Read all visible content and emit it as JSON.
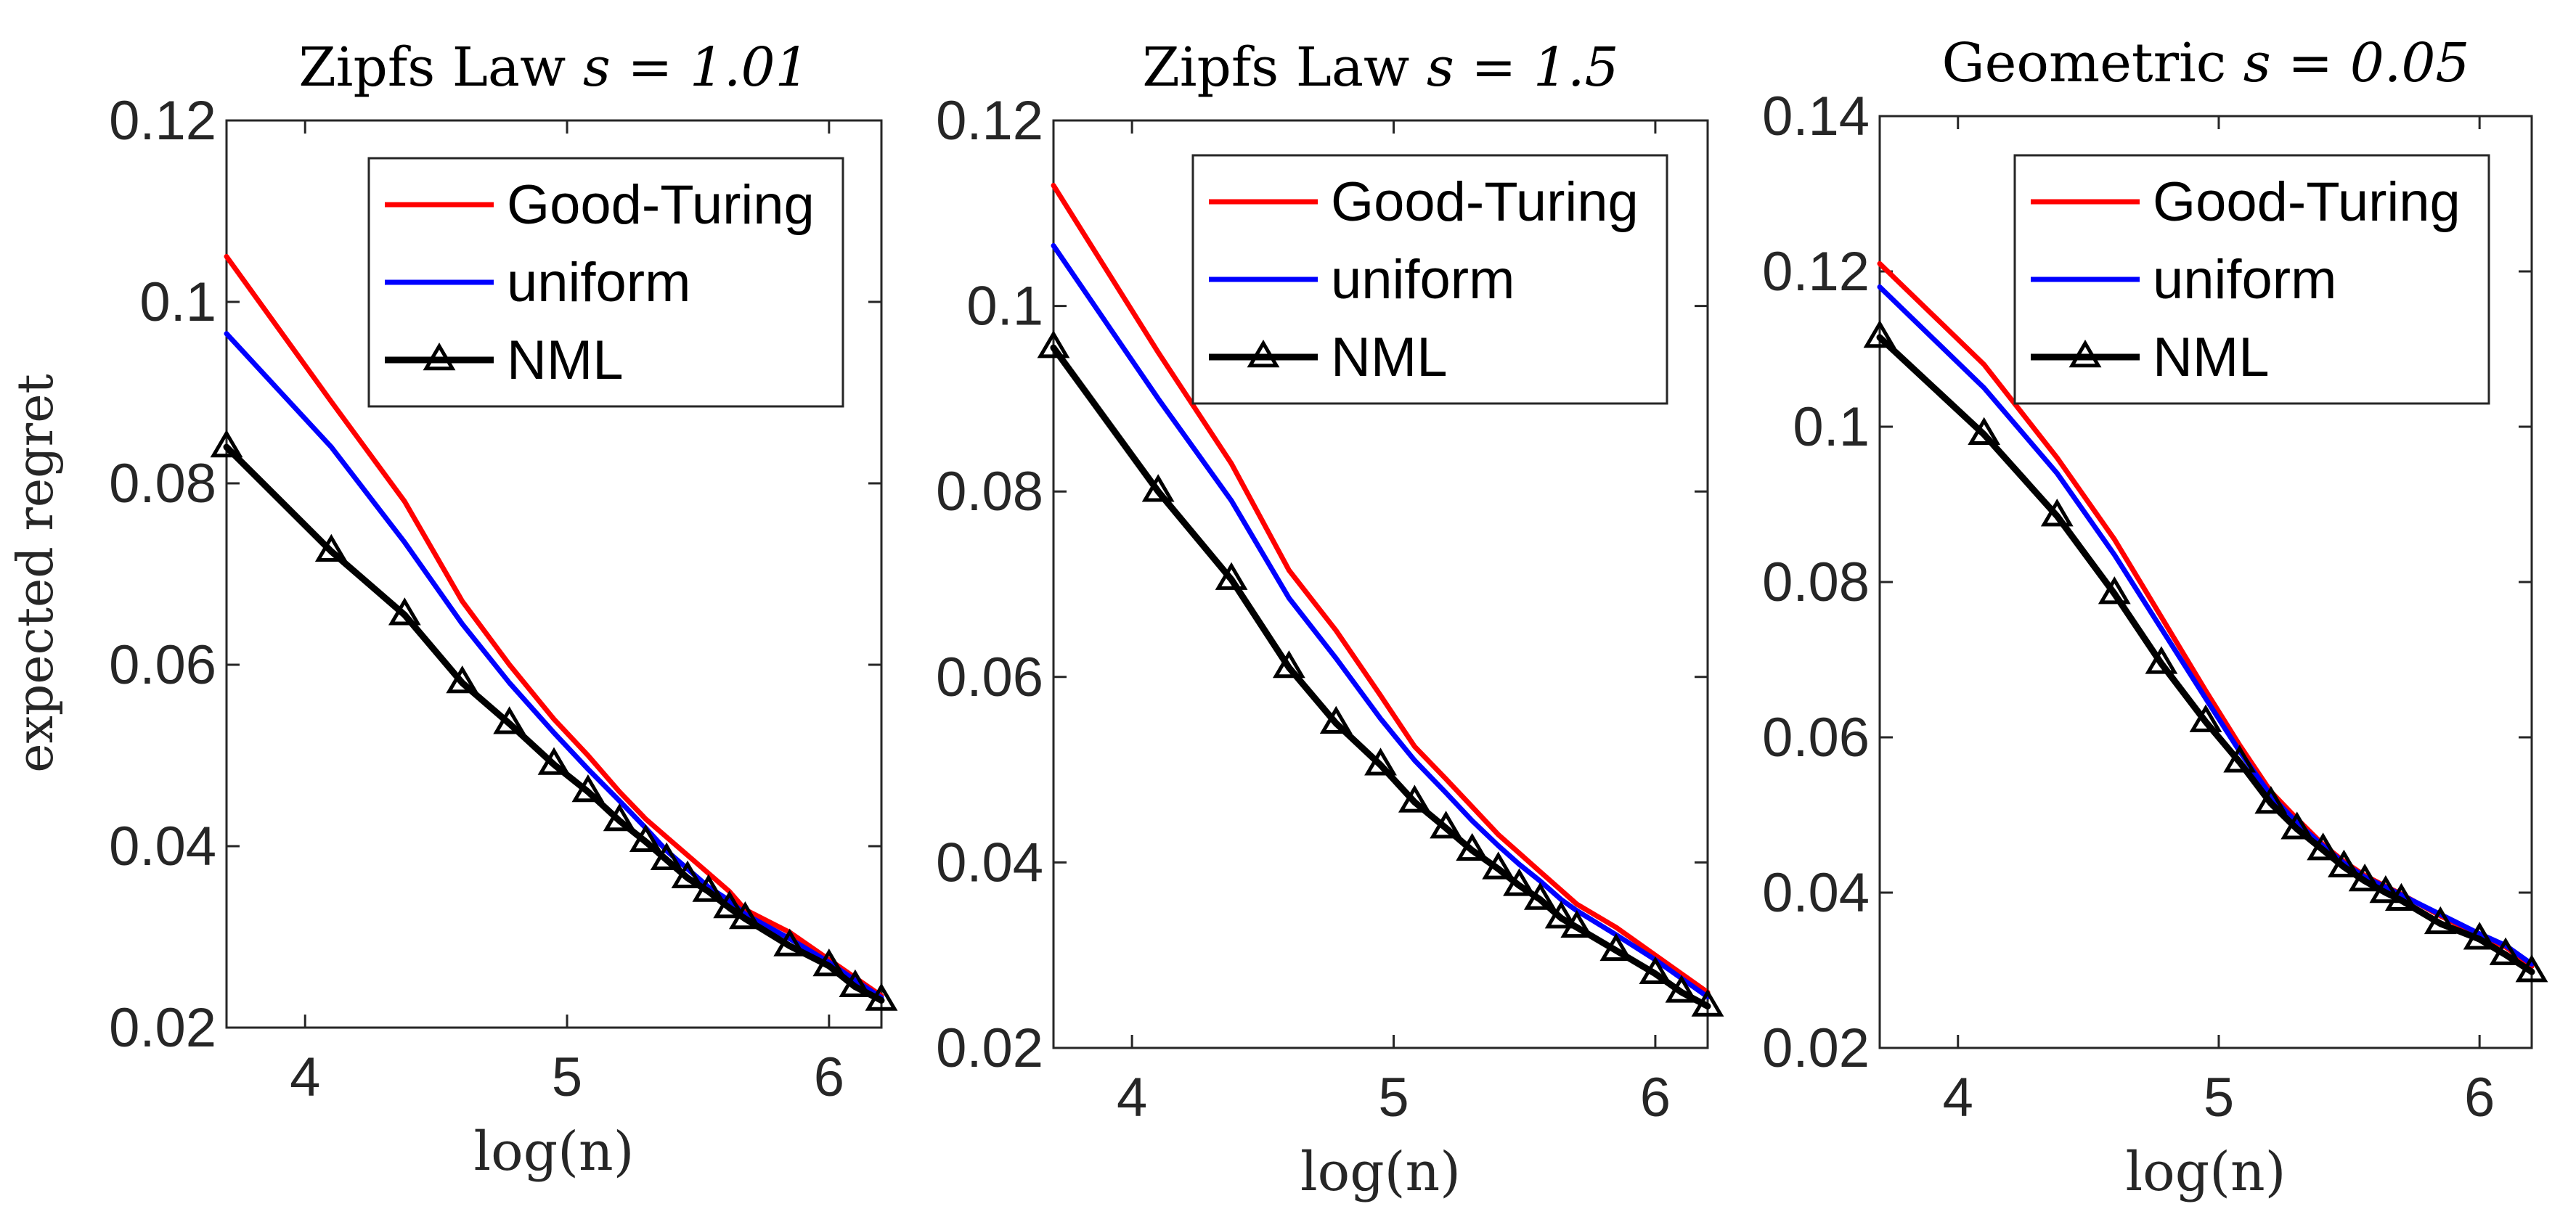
{
  "figure": {
    "ylabel": "expected regret",
    "colors": {
      "good_turing": "#ff0000",
      "uniform": "#0000ff",
      "nml": "#000000",
      "axes": "#262626"
    },
    "legend": {
      "good_turing": "Good-Turing",
      "uniform": "uniform",
      "nml": "NML"
    }
  },
  "chart_data": [
    {
      "type": "line",
      "title_text": "Zipfs Law",
      "title_math": "s = 1.01",
      "xlabel": "log(n)",
      "ylabel": "expected regret",
      "xlim": [
        3.7,
        6.2
      ],
      "ylim": [
        0.02,
        0.12
      ],
      "xticks": [
        4,
        5,
        6
      ],
      "xtick_labels": [
        "4",
        "5",
        "6"
      ],
      "yticks": [
        0.02,
        0.04,
        0.06,
        0.08,
        0.1,
        0.12
      ],
      "ytick_labels": [
        "0.02",
        "0.04",
        "0.06",
        "0.08",
        "0.1",
        "0.12"
      ],
      "legend_position": "top-right",
      "x": [
        3.7,
        4.1,
        4.38,
        4.6,
        4.78,
        4.95,
        5.08,
        5.2,
        5.3,
        5.38,
        5.46,
        5.54,
        5.62,
        5.68,
        5.85,
        6.0,
        6.1,
        6.2
      ],
      "series": [
        {
          "name": "Good-Turing",
          "key": "good_turing",
          "values": [
            0.105,
            0.089,
            0.078,
            0.067,
            0.06,
            0.054,
            0.05,
            0.046,
            0.043,
            0.041,
            0.039,
            0.037,
            0.035,
            0.033,
            0.0305,
            0.0275,
            0.0255,
            0.0235
          ]
        },
        {
          "name": "uniform",
          "key": "uniform",
          "values": [
            0.0965,
            0.084,
            0.0735,
            0.0645,
            0.058,
            0.0525,
            0.0485,
            0.045,
            0.042,
            0.0395,
            0.0375,
            0.0355,
            0.034,
            0.0325,
            0.0298,
            0.0272,
            0.0252,
            0.0233
          ]
        },
        {
          "name": "NML",
          "key": "nml",
          "marker": "triangle",
          "values": [
            0.084,
            0.0725,
            0.0655,
            0.058,
            0.0535,
            0.049,
            0.046,
            0.0428,
            0.0405,
            0.0385,
            0.0365,
            0.035,
            0.0332,
            0.032,
            0.029,
            0.0268,
            0.0245,
            0.023
          ]
        }
      ]
    },
    {
      "type": "line",
      "title_text": "Zipfs Law",
      "title_math": "s = 1.5",
      "xlabel": "log(n)",
      "ylabel": "",
      "xlim": [
        3.7,
        6.2
      ],
      "ylim": [
        0.02,
        0.12
      ],
      "xticks": [
        4,
        5,
        6
      ],
      "xtick_labels": [
        "4",
        "5",
        "6"
      ],
      "yticks": [
        0.02,
        0.04,
        0.06,
        0.08,
        0.1,
        0.12
      ],
      "ytick_labels": [
        "0.02",
        "0.04",
        "0.06",
        "0.08",
        "0.1",
        "0.12"
      ],
      "legend_position": "top-right",
      "x": [
        3.7,
        4.1,
        4.38,
        4.6,
        4.78,
        4.95,
        5.08,
        5.2,
        5.3,
        5.4,
        5.48,
        5.56,
        5.64,
        5.7,
        5.85,
        6.0,
        6.1,
        6.2
      ],
      "series": [
        {
          "name": "Good-Turing",
          "key": "good_turing",
          "values": [
            0.113,
            0.095,
            0.083,
            0.0715,
            0.065,
            0.058,
            0.0525,
            0.049,
            0.046,
            0.043,
            0.041,
            0.039,
            0.037,
            0.0355,
            0.033,
            0.03,
            0.028,
            0.026
          ]
        },
        {
          "name": "uniform",
          "key": "uniform",
          "values": [
            0.1065,
            0.09,
            0.079,
            0.0685,
            0.062,
            0.0555,
            0.051,
            0.0475,
            0.0445,
            0.0418,
            0.0398,
            0.038,
            0.036,
            0.0348,
            0.0322,
            0.0295,
            0.0275,
            0.0255
          ]
        },
        {
          "name": "NML",
          "key": "nml",
          "marker": "triangle",
          "values": [
            0.0955,
            0.08,
            0.0705,
            0.061,
            0.055,
            0.0505,
            0.0465,
            0.0437,
            0.0413,
            0.0393,
            0.0375,
            0.036,
            0.034,
            0.033,
            0.0305,
            0.028,
            0.026,
            0.0245
          ]
        }
      ]
    },
    {
      "type": "line",
      "title_text": "Geometric",
      "title_math": "s = 0.05",
      "xlabel": "log(n)",
      "ylabel": "",
      "xlim": [
        3.7,
        6.2
      ],
      "ylim": [
        0.02,
        0.14
      ],
      "xticks": [
        4,
        5,
        6
      ],
      "xtick_labels": [
        "4",
        "5",
        "6"
      ],
      "yticks": [
        0.02,
        0.04,
        0.06,
        0.08,
        0.1,
        0.12,
        0.14
      ],
      "ytick_labels": [
        "0.02",
        "0.04",
        "0.06",
        "0.08",
        "0.1",
        "0.12",
        "0.14"
      ],
      "legend_position": "top-right",
      "x": [
        3.7,
        4.1,
        4.38,
        4.6,
        4.78,
        4.95,
        5.08,
        5.2,
        5.3,
        5.4,
        5.48,
        5.56,
        5.64,
        5.7,
        5.85,
        6.0,
        6.1,
        6.2
      ],
      "series": [
        {
          "name": "Good-Turing",
          "key": "good_turing",
          "values": [
            0.121,
            0.108,
            0.096,
            0.0855,
            0.0755,
            0.066,
            0.059,
            0.053,
            0.0495,
            0.0462,
            0.044,
            0.0422,
            0.0408,
            0.0398,
            0.037,
            0.0345,
            0.033,
            0.0305
          ]
        },
        {
          "name": "uniform",
          "key": "uniform",
          "values": [
            0.118,
            0.105,
            0.094,
            0.0835,
            0.074,
            0.065,
            0.0582,
            0.0525,
            0.049,
            0.046,
            0.0438,
            0.042,
            0.0407,
            0.0397,
            0.0372,
            0.0347,
            0.0332,
            0.0308
          ]
        },
        {
          "name": "NML",
          "key": "nml",
          "marker": "triangle",
          "values": [
            0.1115,
            0.099,
            0.0885,
            0.0785,
            0.0695,
            0.062,
            0.0568,
            0.0515,
            0.0482,
            0.0455,
            0.0433,
            0.0415,
            0.04,
            0.039,
            0.036,
            0.034,
            0.032,
            0.0298
          ]
        }
      ]
    }
  ]
}
